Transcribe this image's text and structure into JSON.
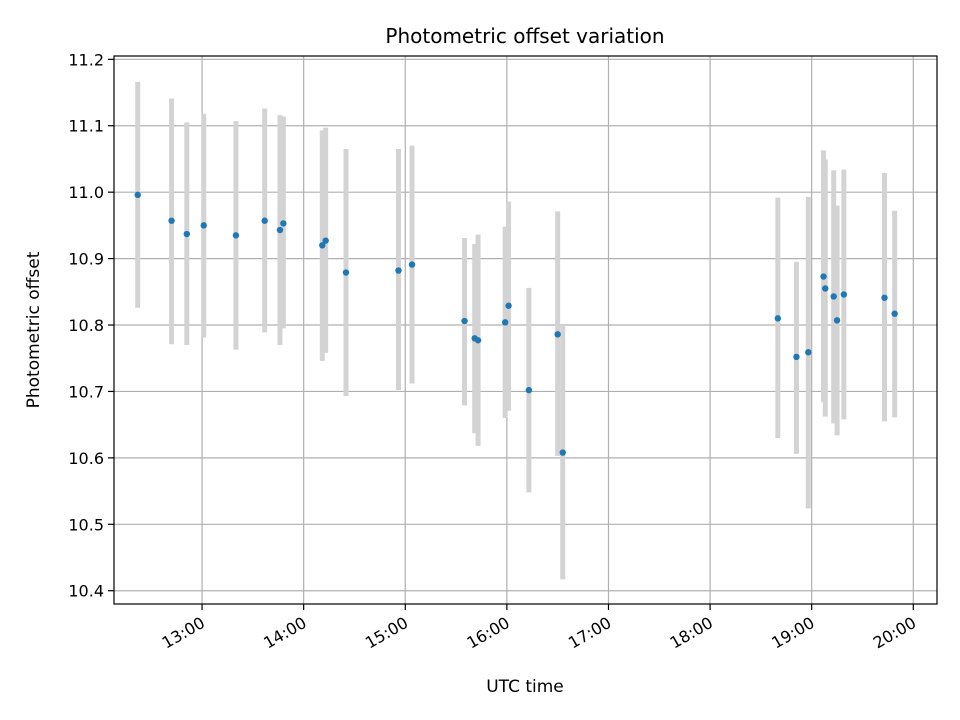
{
  "chart_data": {
    "type": "scatter",
    "title": "Photometric offset variation",
    "xlabel": "UTC time",
    "ylabel": "Photometric offset",
    "x_ticks": [
      "13:00",
      "14:00",
      "15:00",
      "16:00",
      "17:00",
      "18:00",
      "19:00",
      "20:00"
    ],
    "y_ticks": [
      "10.4",
      "10.5",
      "10.6",
      "10.7",
      "10.8",
      "10.9",
      "11.0",
      "11.1",
      "11.2"
    ],
    "xlim": [
      "12:08",
      "20:14"
    ],
    "ylim": [
      10.38,
      11.205
    ],
    "grid": true,
    "legend": "none",
    "marker_color": "#1f77b4",
    "errorbar_color": "#d3d3d3",
    "points": [
      {
        "time": "12:22",
        "y": 10.996,
        "ylo": 10.826,
        "yhi": 11.166
      },
      {
        "time": "12:42",
        "y": 10.957,
        "ylo": 10.771,
        "yhi": 11.141
      },
      {
        "time": "12:51",
        "y": 10.937,
        "ylo": 10.77,
        "yhi": 11.105
      },
      {
        "time": "13:01",
        "y": 10.95,
        "ylo": 10.781,
        "yhi": 11.118
      },
      {
        "time": "13:20",
        "y": 10.935,
        "ylo": 10.763,
        "yhi": 11.107
      },
      {
        "time": "13:37",
        "y": 10.957,
        "ylo": 10.789,
        "yhi": 11.126
      },
      {
        "time": "13:46",
        "y": 10.943,
        "ylo": 10.77,
        "yhi": 11.116
      },
      {
        "time": "13:48",
        "y": 10.953,
        "ylo": 10.795,
        "yhi": 11.114
      },
      {
        "time": "14:11",
        "y": 10.92,
        "ylo": 10.746,
        "yhi": 11.093
      },
      {
        "time": "14:13",
        "y": 10.927,
        "ylo": 10.758,
        "yhi": 11.097
      },
      {
        "time": "14:25",
        "y": 10.879,
        "ylo": 10.693,
        "yhi": 11.065
      },
      {
        "time": "14:56",
        "y": 10.882,
        "ylo": 10.702,
        "yhi": 11.065
      },
      {
        "time": "15:04",
        "y": 10.891,
        "ylo": 10.712,
        "yhi": 11.07
      },
      {
        "time": "15:35",
        "y": 10.806,
        "ylo": 10.679,
        "yhi": 10.931
      },
      {
        "time": "15:41",
        "y": 10.78,
        "ylo": 10.637,
        "yhi": 10.922
      },
      {
        "time": "15:43",
        "y": 10.777,
        "ylo": 10.618,
        "yhi": 10.936
      },
      {
        "time": "15:59",
        "y": 10.804,
        "ylo": 10.66,
        "yhi": 10.948
      },
      {
        "time": "16:01",
        "y": 10.829,
        "ylo": 10.671,
        "yhi": 10.986
      },
      {
        "time": "16:13",
        "y": 10.702,
        "ylo": 10.548,
        "yhi": 10.856
      },
      {
        "time": "16:30",
        "y": 10.786,
        "ylo": 10.603,
        "yhi": 10.971
      },
      {
        "time": "16:33",
        "y": 10.608,
        "ylo": 10.417,
        "yhi": 10.8
      },
      {
        "time": "18:40",
        "y": 10.81,
        "ylo": 10.63,
        "yhi": 10.992
      },
      {
        "time": "18:51",
        "y": 10.752,
        "ylo": 10.606,
        "yhi": 10.895
      },
      {
        "time": "18:58",
        "y": 10.759,
        "ylo": 10.524,
        "yhi": 10.993
      },
      {
        "time": "19:07",
        "y": 10.873,
        "ylo": 10.684,
        "yhi": 11.063
      },
      {
        "time": "19:08",
        "y": 10.855,
        "ylo": 10.662,
        "yhi": 11.049
      },
      {
        "time": "19:13",
        "y": 10.843,
        "ylo": 10.652,
        "yhi": 11.033
      },
      {
        "time": "19:15",
        "y": 10.807,
        "ylo": 10.634,
        "yhi": 10.98
      },
      {
        "time": "19:19",
        "y": 10.846,
        "ylo": 10.658,
        "yhi": 11.034
      },
      {
        "time": "19:43",
        "y": 10.841,
        "ylo": 10.655,
        "yhi": 11.029
      },
      {
        "time": "19:49",
        "y": 10.817,
        "ylo": 10.661,
        "yhi": 10.972
      }
    ]
  }
}
